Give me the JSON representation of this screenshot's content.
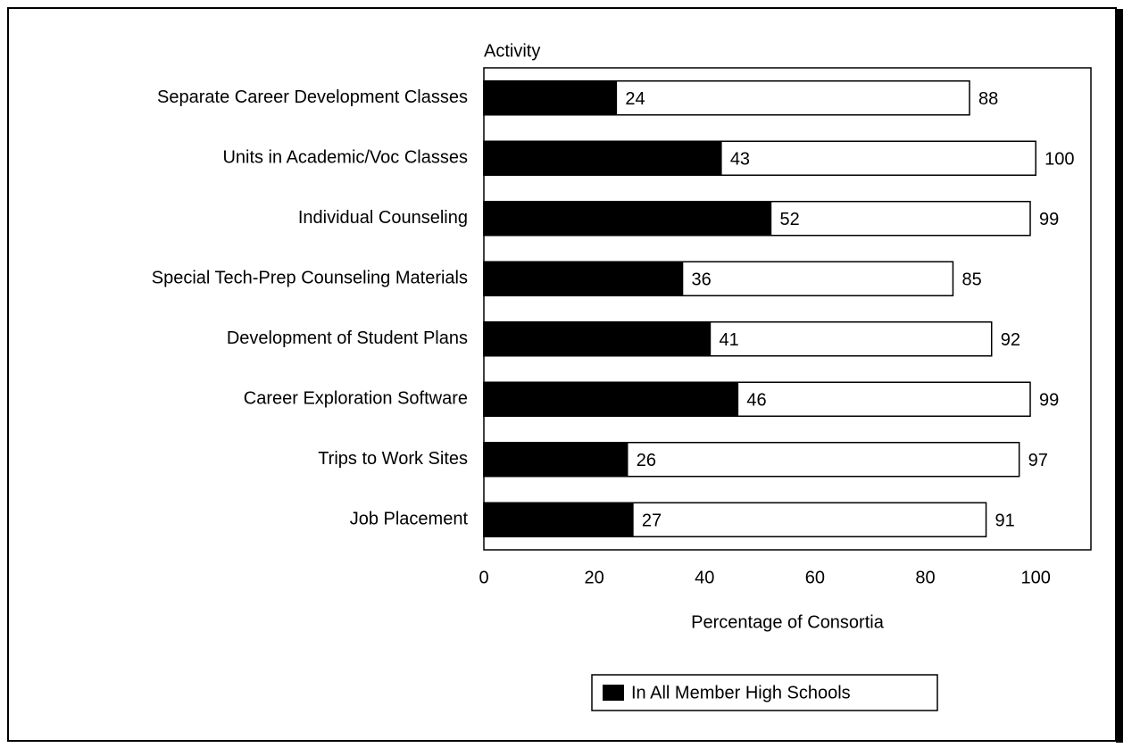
{
  "chart_data": {
    "type": "bar",
    "orientation": "horizontal",
    "overlap": true,
    "y_label": "Activity",
    "x_label": "Percentage of Consortia",
    "categories": [
      "Separate Career Development Classes",
      "Units in Academic/Voc Classes",
      "Individual Counseling",
      "Special Tech-Prep Counseling Materials",
      "Development of Student Plans",
      "Career Exploration Software",
      "Trips to Work Sites",
      "Job Placement"
    ],
    "series": [
      {
        "color": "#ffffff",
        "values": [
          88,
          100,
          99,
          85,
          92,
          99,
          97,
          91
        ]
      },
      {
        "name": "In All Member High Schools",
        "color": "#000000",
        "values": [
          24,
          43,
          52,
          36,
          41,
          46,
          26,
          27
        ]
      }
    ],
    "xlim": [
      0,
      110
    ],
    "xticks": [
      0,
      20,
      40,
      60,
      80,
      100
    ],
    "grid": false,
    "legend": "bottom"
  }
}
